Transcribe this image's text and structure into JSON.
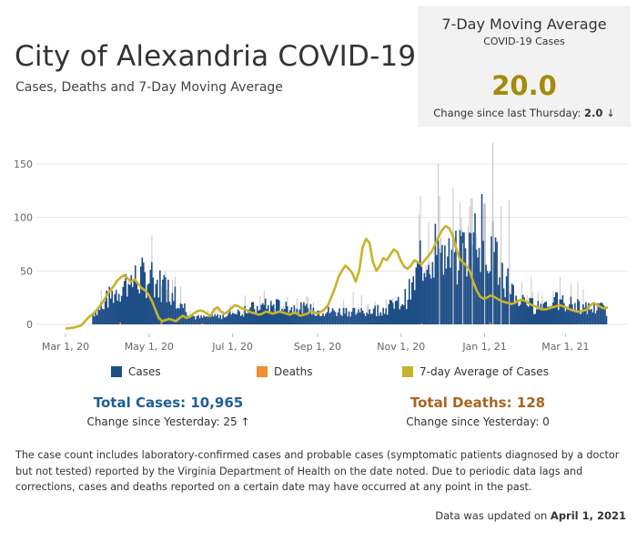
{
  "header": {
    "title": "City of Alexandria COVID-19",
    "subtitle": "Cases, Deaths  and 7-Day Moving Average"
  },
  "kpi": {
    "title": "7-Day Moving Average",
    "subtitle": "COVID-19 Cases",
    "value": "20.0",
    "change_label": "Change since last Thursday:",
    "change_value": "2.0",
    "change_arrow": "↓"
  },
  "legend": {
    "cases": "Cases",
    "deaths": "Deaths",
    "avg": "7-day Average of Cases"
  },
  "totals": {
    "cases_label": "Total Cases: 10,965",
    "cases_change": "Change since Yesterday: 25 ↑",
    "deaths_label": "Total Deaths: 128",
    "deaths_change": "Change since Yesterday: 0"
  },
  "note": "The case count includes laboratory-confirmed cases and probable cases (symptomatic patients diagnosed by a doctor but not tested) reported by the Virginia Department of Health on the date noted. Due to periodic data lags and corrections, cases and deaths reported on a certain date may have occurred at any point in the past.",
  "updated": {
    "label": "Data was updated on",
    "date": "April 1, 2021"
  },
  "colors": {
    "cases": "#1f4e87",
    "deaths": "#f28e2b",
    "avg": "#c8b32a",
    "reported": "#c8c8c8",
    "kpi_value": "#a58a0a",
    "total_cases": "#1f5d98",
    "total_deaths": "#a8641e"
  },
  "chart_data": {
    "type": "bar",
    "x_start": "2020-03-01",
    "x_ticks": [
      "Mar 1, 20",
      "May 1, 20",
      "Jul 1, 20",
      "Sep 1, 20",
      "Nov 1, 20",
      "Jan 1, 21",
      "Mar 1, 21"
    ],
    "y_ticks": [
      0,
      50,
      100,
      150
    ],
    "ylim": [
      -5,
      175
    ],
    "grid": true,
    "series": [
      {
        "name": "Cases",
        "type": "bar",
        "keypoints": [
          [
            0,
            0
          ],
          [
            8,
            1
          ],
          [
            14,
            3
          ],
          [
            20,
            10
          ],
          [
            26,
            18
          ],
          [
            32,
            25
          ],
          [
            38,
            32
          ],
          [
            44,
            38
          ],
          [
            50,
            42
          ],
          [
            56,
            44
          ],
          [
            62,
            42
          ],
          [
            68,
            38
          ],
          [
            74,
            33
          ],
          [
            80,
            28
          ],
          [
            86,
            18
          ],
          [
            92,
            8
          ],
          [
            98,
            6
          ],
          [
            104,
            7
          ],
          [
            110,
            8
          ],
          [
            116,
            9
          ],
          [
            122,
            10
          ],
          [
            128,
            12
          ],
          [
            134,
            14
          ],
          [
            140,
            16
          ],
          [
            146,
            17
          ],
          [
            152,
            17
          ],
          [
            158,
            17
          ],
          [
            164,
            16
          ],
          [
            170,
            15
          ],
          [
            176,
            14
          ],
          [
            182,
            13
          ],
          [
            188,
            12
          ],
          [
            194,
            12
          ],
          [
            200,
            12
          ],
          [
            206,
            13
          ],
          [
            212,
            12
          ],
          [
            218,
            12
          ],
          [
            224,
            13
          ],
          [
            230,
            14
          ],
          [
            236,
            16
          ],
          [
            242,
            18
          ],
          [
            248,
            24
          ],
          [
            254,
            35
          ],
          [
            258,
            52
          ],
          [
            262,
            62
          ],
          [
            266,
            66
          ],
          [
            270,
            72
          ],
          [
            274,
            68
          ],
          [
            278,
            60
          ],
          [
            282,
            58
          ],
          [
            286,
            62
          ],
          [
            290,
            66
          ],
          [
            294,
            72
          ],
          [
            298,
            82
          ],
          [
            302,
            90
          ],
          [
            306,
            84
          ],
          [
            310,
            76
          ],
          [
            314,
            64
          ],
          [
            318,
            52
          ],
          [
            322,
            42
          ],
          [
            326,
            32
          ],
          [
            330,
            25
          ],
          [
            334,
            20
          ],
          [
            338,
            18
          ],
          [
            342,
            17
          ],
          [
            346,
            18
          ],
          [
            350,
            20
          ],
          [
            354,
            22
          ],
          [
            358,
            21
          ],
          [
            362,
            20
          ],
          [
            366,
            19
          ],
          [
            370,
            18
          ],
          [
            374,
            17
          ],
          [
            378,
            16
          ],
          [
            382,
            15
          ],
          [
            386,
            15
          ],
          [
            390,
            15
          ],
          [
            395,
            14
          ]
        ]
      },
      {
        "name": "Deaths",
        "type": "bar",
        "values_note": "small",
        "keypoints": [
          [
            0,
            0
          ],
          [
            40,
            2
          ],
          [
            70,
            3
          ],
          [
            100,
            1
          ],
          [
            200,
            0
          ],
          [
            260,
            1
          ],
          [
            310,
            2
          ],
          [
            395,
            0
          ]
        ]
      },
      {
        "name": "7-day Average of Cases",
        "type": "line",
        "keypoints": [
          [
            0,
            -4
          ],
          [
            10,
            -3
          ],
          [
            18,
            -1
          ],
          [
            26,
            6
          ],
          [
            32,
            10
          ],
          [
            38,
            15
          ],
          [
            44,
            22
          ],
          [
            50,
            30
          ],
          [
            56,
            36
          ],
          [
            60,
            41
          ],
          [
            64,
            44
          ],
          [
            68,
            46
          ],
          [
            72,
            43
          ],
          [
            76,
            40
          ],
          [
            80,
            42
          ],
          [
            84,
            38
          ],
          [
            88,
            34
          ],
          [
            92,
            32
          ],
          [
            96,
            28
          ],
          [
            100,
            22
          ],
          [
            104,
            14
          ],
          [
            108,
            6
          ],
          [
            112,
            3
          ],
          [
            116,
            4
          ],
          [
            120,
            5
          ],
          [
            124,
            4
          ],
          [
            128,
            3
          ],
          [
            132,
            6
          ],
          [
            136,
            8
          ],
          [
            140,
            6
          ],
          [
            144,
            7
          ],
          [
            148,
            10
          ],
          [
            152,
            12
          ],
          [
            156,
            13
          ],
          [
            160,
            12
          ],
          [
            164,
            10
          ],
          [
            168,
            8
          ],
          [
            172,
            14
          ],
          [
            176,
            16
          ],
          [
            180,
            12
          ],
          [
            184,
            10
          ],
          [
            188,
            12
          ],
          [
            192,
            15
          ],
          [
            196,
            18
          ],
          [
            200,
            17
          ],
          [
            204,
            15
          ],
          [
            208,
            14
          ],
          [
            212,
            12
          ],
          [
            216,
            11
          ],
          [
            220,
            10
          ],
          [
            224,
            9
          ],
          [
            228,
            10
          ],
          [
            232,
            12
          ],
          [
            236,
            11
          ],
          [
            240,
            10
          ],
          [
            244,
            11
          ],
          [
            248,
            12
          ],
          [
            252,
            11
          ],
          [
            256,
            10
          ],
          [
            260,
            9
          ],
          [
            264,
            11
          ],
          [
            268,
            10
          ],
          [
            272,
            8
          ],
          [
            276,
            9
          ],
          [
            280,
            10
          ],
          [
            284,
            12
          ],
          [
            288,
            11
          ],
          [
            292,
            10
          ],
          [
            296,
            12
          ],
          [
            300,
            14
          ],
          [
            304,
            18
          ],
          [
            308,
            26
          ],
          [
            312,
            34
          ],
          [
            316,
            44
          ],
          [
            320,
            50
          ],
          [
            324,
            55
          ],
          [
            328,
            52
          ],
          [
            332,
            48
          ],
          [
            336,
            40
          ],
          [
            340,
            50
          ],
          [
            344,
            72
          ],
          [
            348,
            80
          ],
          [
            352,
            76
          ],
          [
            356,
            58
          ],
          [
            360,
            50
          ],
          [
            364,
            55
          ],
          [
            368,
            62
          ],
          [
            372,
            60
          ],
          [
            376,
            65
          ],
          [
            380,
            70
          ],
          [
            384,
            68
          ],
          [
            388,
            60
          ],
          [
            392,
            54
          ],
          [
            396,
            52
          ],
          [
            400,
            55
          ],
          [
            404,
            60
          ],
          [
            408,
            58
          ],
          [
            412,
            56
          ],
          [
            416,
            60
          ],
          [
            420,
            64
          ],
          [
            424,
            68
          ],
          [
            428,
            75
          ],
          [
            432,
            82
          ],
          [
            436,
            88
          ],
          [
            440,
            92
          ],
          [
            444,
            90
          ],
          [
            448,
            84
          ],
          [
            452,
            72
          ],
          [
            456,
            62
          ],
          [
            460,
            58
          ],
          [
            464,
            55
          ],
          [
            468,
            50
          ],
          [
            472,
            40
          ],
          [
            476,
            32
          ],
          [
            480,
            26
          ],
          [
            484,
            24
          ],
          [
            488,
            25
          ],
          [
            492,
            27
          ],
          [
            496,
            26
          ],
          [
            500,
            24
          ],
          [
            504,
            22
          ],
          [
            508,
            21
          ],
          [
            512,
            20
          ],
          [
            516,
            19
          ],
          [
            520,
            20
          ],
          [
            524,
            22
          ],
          [
            528,
            23
          ],
          [
            532,
            22
          ],
          [
            536,
            20
          ],
          [
            540,
            18
          ],
          [
            544,
            17
          ],
          [
            548,
            15
          ],
          [
            552,
            14
          ],
          [
            556,
            14
          ],
          [
            560,
            15
          ],
          [
            564,
            16
          ],
          [
            568,
            17
          ],
          [
            572,
            18
          ],
          [
            576,
            17
          ],
          [
            580,
            16
          ],
          [
            584,
            14
          ],
          [
            588,
            13
          ],
          [
            592,
            12
          ],
          [
            596,
            12
          ],
          [
            600,
            13
          ],
          [
            604,
            14
          ],
          [
            608,
            18
          ],
          [
            612,
            20
          ],
          [
            616,
            18
          ],
          [
            620,
            16
          ],
          [
            624,
            15
          ],
          [
            628,
            16
          ]
        ]
      }
    ]
  }
}
